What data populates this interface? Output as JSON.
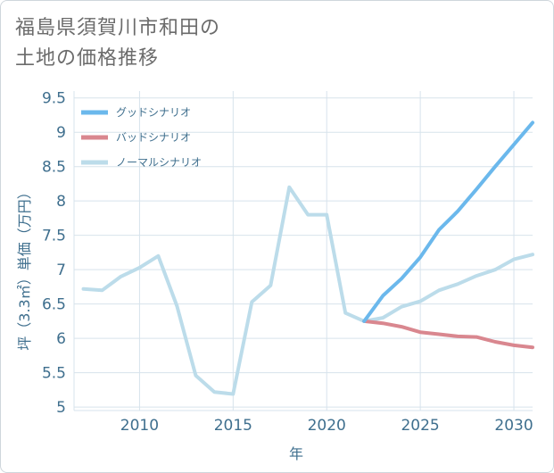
{
  "title": {
    "line1": "福島県須賀川市和田の",
    "line2": "土地の価格推移"
  },
  "chart_data": {
    "type": "line",
    "title": "福島県須賀川市和田の土地の価格推移",
    "xlabel": "年",
    "ylabel": "坪（3.3㎡）単価（万円）",
    "xlim": [
      2006.5,
      2031
    ],
    "ylim": [
      4.95,
      9.6
    ],
    "x_ticks": [
      2010,
      2015,
      2020,
      2025,
      2030
    ],
    "y_ticks": [
      5,
      5.5,
      6,
      6.5,
      7,
      7.5,
      8,
      8.5,
      9,
      9.5
    ],
    "y_tick_labels": [
      "5",
      "5.5",
      "6",
      "6.5",
      "7",
      "7.5",
      "8",
      "8.5",
      "9",
      "9.5"
    ],
    "grid": true,
    "legend_position": "top-left",
    "series": [
      {
        "name": "グッドシナリオ",
        "color": "#6bb8ec",
        "x": [
          2022,
          2023,
          2024,
          2025,
          2026,
          2027,
          2028,
          2029,
          2030,
          2031
        ],
        "y": [
          6.25,
          6.62,
          6.87,
          7.18,
          7.58,
          7.85,
          8.17,
          8.5,
          8.82,
          9.14
        ]
      },
      {
        "name": "バッドシナリオ",
        "color": "#d9878f",
        "x": [
          2022,
          2023,
          2024,
          2025,
          2026,
          2027,
          2028,
          2029,
          2030,
          2031
        ],
        "y": [
          6.25,
          6.22,
          6.17,
          6.09,
          6.06,
          6.03,
          6.02,
          5.95,
          5.9,
          5.87
        ]
      },
      {
        "name": "ノーマルシナリオ",
        "color": "#bcdcea",
        "x": [
          2007,
          2008,
          2009,
          2010,
          2011,
          2012,
          2013,
          2014,
          2015,
          2016,
          2017,
          2018,
          2019,
          2020,
          2021,
          2022,
          2023,
          2024,
          2025,
          2026,
          2027,
          2028,
          2029,
          2030,
          2031
        ],
        "y": [
          6.72,
          6.7,
          6.9,
          7.03,
          7.2,
          6.47,
          5.46,
          5.22,
          5.19,
          6.53,
          6.77,
          8.2,
          7.8,
          7.8,
          6.37,
          6.25,
          6.3,
          6.46,
          6.54,
          6.7,
          6.79,
          6.91,
          7.0,
          7.15,
          7.22
        ]
      }
    ]
  }
}
